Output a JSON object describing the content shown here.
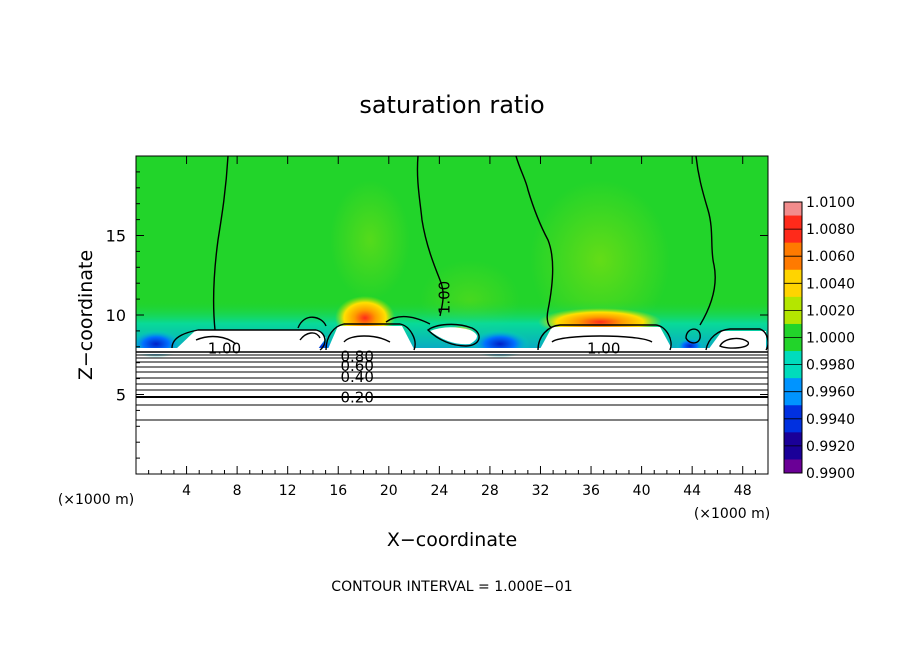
{
  "chart_data": {
    "type": "heatmap",
    "title": "saturation ratio",
    "xlabel": "X−coordinate",
    "ylabel": "Z−coordinate",
    "x_unit_label_left": "(×1000 m)",
    "x_unit_label_right": "(×1000 m)",
    "xlim": [
      0,
      50
    ],
    "ylim": [
      0,
      20
    ],
    "x_ticks": [
      4,
      8,
      12,
      16,
      20,
      24,
      28,
      32,
      36,
      40,
      44,
      48
    ],
    "y_ticks": [
      5,
      10,
      15
    ],
    "footer": "CONTOUR INTERVAL = 1.000E−01",
    "colorbar": {
      "ticks": [
        "1.0100",
        "1.0080",
        "1.0060",
        "1.0040",
        "1.0020",
        "1.0000",
        "0.9980",
        "0.9960",
        "0.9940",
        "0.9920",
        "0.9900"
      ],
      "colors": [
        "#f28c8c",
        "#ff2a1a",
        "#ff7a00",
        "#ffd400",
        "#b4e600",
        "#22d42a",
        "#00dcbc",
        "#0094ff",
        "#0030e0",
        "#1a0098",
        "#6a0096"
      ]
    },
    "contour_labels": [
      {
        "text": "1.00",
        "x": 7.0,
        "y": 7.9
      },
      {
        "text": "1.00",
        "x": 24.4,
        "y": 11.1
      },
      {
        "text": "1.00",
        "x": 37.0,
        "y": 7.9
      },
      {
        "text": "0.80",
        "x": 17.5,
        "y": 7.4
      },
      {
        "text": "0.60",
        "x": 17.5,
        "y": 6.8
      },
      {
        "text": "0.40",
        "x": 17.5,
        "y": 6.1
      },
      {
        "text": "0.20",
        "x": 17.5,
        "y": 4.8
      }
    ],
    "colors": {
      "background_field": "#22d42a",
      "axes": "#000000"
    }
  }
}
